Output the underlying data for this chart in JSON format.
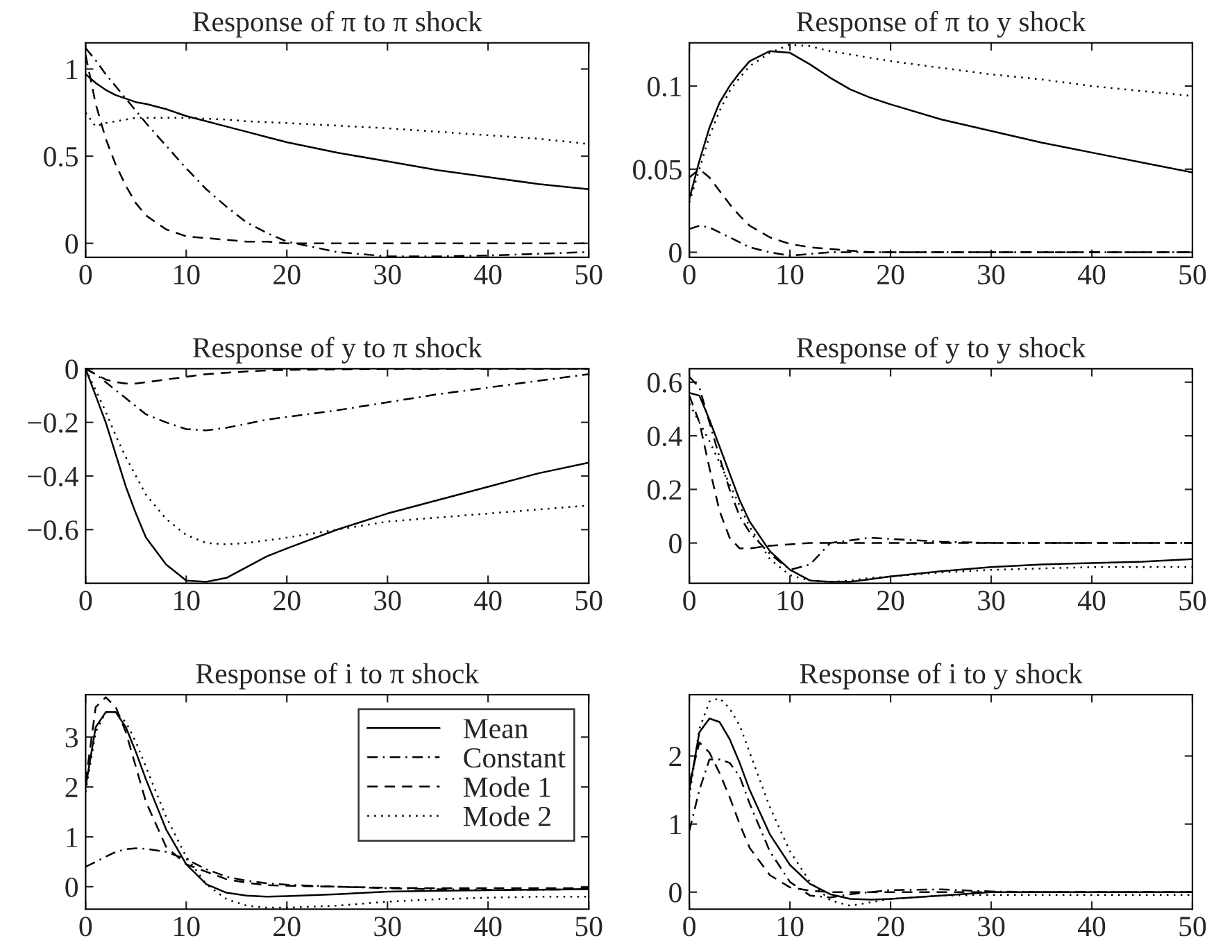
{
  "chart_data": [
    {
      "type": "line",
      "title": "Response of π to π shock",
      "x": [
        0,
        1,
        2,
        3,
        4,
        5,
        6,
        8,
        10,
        12,
        14,
        16,
        18,
        20,
        25,
        30,
        35,
        40,
        45,
        50
      ],
      "xlim": [
        0,
        50
      ],
      "xticks": [
        0,
        10,
        20,
        30,
        40,
        50
      ],
      "ylim": [
        -0.08,
        1.15
      ],
      "yticks": [
        0,
        0.5,
        1
      ],
      "legend": false,
      "series": [
        {
          "color": "#000000",
          "line_style": "solid",
          "values": [
            0.97,
            0.92,
            0.88,
            0.85,
            0.83,
            0.81,
            0.8,
            0.77,
            0.73,
            0.7,
            0.67,
            0.64,
            0.61,
            0.58,
            0.52,
            0.47,
            0.42,
            0.38,
            0.34,
            0.31
          ]
        },
        {
          "color": "#000000",
          "line_style": "dashdot",
          "values": [
            1.12,
            1.05,
            0.97,
            0.9,
            0.83,
            0.76,
            0.69,
            0.56,
            0.43,
            0.31,
            0.21,
            0.12,
            0.06,
            0.01,
            -0.05,
            -0.075,
            -0.075,
            -0.07,
            -0.06,
            -0.05
          ]
        },
        {
          "color": "#000000",
          "line_style": "dashed",
          "values": [
            1.08,
            0.8,
            0.6,
            0.45,
            0.33,
            0.23,
            0.16,
            0.08,
            0.04,
            0.03,
            0.02,
            0.01,
            0.01,
            0.0,
            0,
            0,
            0,
            0,
            0,
            0
          ]
        },
        {
          "color": "#000000",
          "line_style": "dotted",
          "values": [
            0.75,
            0.67,
            0.69,
            0.7,
            0.71,
            0.72,
            0.72,
            0.72,
            0.72,
            0.715,
            0.71,
            0.7,
            0.695,
            0.69,
            0.675,
            0.66,
            0.64,
            0.62,
            0.6,
            0.57
          ]
        }
      ]
    },
    {
      "type": "line",
      "title": "Response of π to y shock",
      "x": [
        0,
        1,
        2,
        3,
        4,
        5,
        6,
        8,
        10,
        12,
        14,
        16,
        18,
        20,
        25,
        30,
        35,
        40,
        45,
        50
      ],
      "xlim": [
        0,
        50
      ],
      "xticks": [
        0,
        10,
        20,
        30,
        40,
        50
      ],
      "ylim": [
        -0.003,
        0.126
      ],
      "yticks": [
        0,
        0.05,
        0.1
      ],
      "legend": false,
      "series": [
        {
          "color": "#000000",
          "line_style": "solid",
          "values": [
            0.032,
            0.055,
            0.075,
            0.09,
            0.1,
            0.108,
            0.115,
            0.121,
            0.12,
            0.113,
            0.105,
            0.098,
            0.093,
            0.089,
            0.08,
            0.073,
            0.066,
            0.06,
            0.054,
            0.048
          ]
        },
        {
          "color": "#000000",
          "line_style": "dashdot",
          "values": [
            0.014,
            0.016,
            0.015,
            0.012,
            0.009,
            0.006,
            0.003,
            0.0,
            -0.002,
            -0.001,
            0.0,
            0,
            0,
            0,
            0,
            0,
            0,
            0,
            0,
            0
          ]
        },
        {
          "color": "#000000",
          "line_style": "dashed",
          "values": [
            0.045,
            0.05,
            0.045,
            0.037,
            0.029,
            0.022,
            0.016,
            0.009,
            0.005,
            0.003,
            0.002,
            0.001,
            0.0,
            0,
            0,
            0,
            0,
            0,
            0,
            0
          ]
        },
        {
          "color": "#000000",
          "line_style": "dotted",
          "values": [
            0.03,
            0.05,
            0.07,
            0.085,
            0.097,
            0.105,
            0.112,
            0.12,
            0.125,
            0.124,
            0.121,
            0.119,
            0.117,
            0.115,
            0.111,
            0.107,
            0.104,
            0.1,
            0.097,
            0.094
          ]
        }
      ]
    },
    {
      "type": "line",
      "title": "Response of y to π shock",
      "x": [
        0,
        1,
        2,
        3,
        4,
        5,
        6,
        8,
        10,
        12,
        14,
        16,
        18,
        20,
        25,
        30,
        35,
        40,
        45,
        50
      ],
      "xlim": [
        0,
        50
      ],
      "xticks": [
        0,
        10,
        20,
        30,
        40,
        50
      ],
      "ylim": [
        -0.8,
        0
      ],
      "yticks": [
        {
          "value": -0.6,
          "label": "−0.6"
        },
        {
          "value": -0.4,
          "label": "−0.4"
        },
        {
          "value": -0.2,
          "label": "−0.2"
        },
        0
      ],
      "legend": false,
      "series": [
        {
          "color": "#000000",
          "line_style": "solid",
          "values": [
            0,
            -0.1,
            -0.2,
            -0.32,
            -0.44,
            -0.54,
            -0.63,
            -0.73,
            -0.79,
            -0.795,
            -0.78,
            -0.74,
            -0.7,
            -0.67,
            -0.6,
            -0.54,
            -0.49,
            -0.44,
            -0.39,
            -0.35
          ]
        },
        {
          "color": "#000000",
          "line_style": "dashdot",
          "values": [
            0,
            -0.02,
            -0.05,
            -0.08,
            -0.11,
            -0.14,
            -0.17,
            -0.2,
            -0.225,
            -0.23,
            -0.22,
            -0.205,
            -0.19,
            -0.18,
            -0.155,
            -0.125,
            -0.095,
            -0.07,
            -0.045,
            -0.02
          ]
        },
        {
          "color": "#000000",
          "line_style": "dashed",
          "values": [
            0,
            -0.02,
            -0.04,
            -0.05,
            -0.055,
            -0.055,
            -0.05,
            -0.04,
            -0.03,
            -0.02,
            -0.015,
            -0.01,
            -0.006,
            -0.004,
            -0.002,
            0,
            0,
            0,
            0,
            0
          ]
        },
        {
          "color": "#000000",
          "line_style": "dotted",
          "values": [
            0,
            -0.08,
            -0.16,
            -0.25,
            -0.33,
            -0.4,
            -0.47,
            -0.56,
            -0.62,
            -0.65,
            -0.655,
            -0.65,
            -0.64,
            -0.63,
            -0.6,
            -0.57,
            -0.555,
            -0.54,
            -0.525,
            -0.51
          ]
        }
      ]
    },
    {
      "type": "line",
      "title": "Response of y to y shock",
      "x": [
        0,
        1,
        2,
        3,
        4,
        5,
        6,
        8,
        10,
        12,
        14,
        16,
        18,
        20,
        25,
        30,
        35,
        40,
        45,
        50
      ],
      "xlim": [
        0,
        50
      ],
      "xticks": [
        0,
        10,
        20,
        30,
        40,
        50
      ],
      "ylim": [
        -0.15,
        0.65
      ],
      "yticks": [
        0,
        0.2,
        0.4,
        0.6
      ],
      "legend": false,
      "series": [
        {
          "color": "#000000",
          "line_style": "solid",
          "values": [
            0.56,
            0.55,
            0.46,
            0.36,
            0.26,
            0.16,
            0.08,
            -0.03,
            -0.1,
            -0.14,
            -0.145,
            -0.145,
            -0.135,
            -0.125,
            -0.105,
            -0.09,
            -0.08,
            -0.075,
            -0.07,
            -0.06
          ]
        },
        {
          "color": "#000000",
          "line_style": "dashdot",
          "values": [
            0.62,
            0.58,
            0.45,
            0.32,
            0.2,
            0.1,
            0.04,
            -0.04,
            -0.1,
            -0.08,
            0.0,
            0.01,
            0.02,
            0.015,
            0.005,
            0,
            0,
            0,
            0,
            0
          ]
        },
        {
          "color": "#000000",
          "line_style": "dashed",
          "values": [
            0.55,
            0.45,
            0.28,
            0.12,
            0.02,
            -0.02,
            -0.02,
            -0.01,
            -0.005,
            0,
            0,
            0,
            0,
            0,
            0,
            0,
            0,
            0,
            0,
            0
          ]
        },
        {
          "color": "#000000",
          "line_style": "dotted",
          "values": [
            0.52,
            0.45,
            0.38,
            0.3,
            0.22,
            0.14,
            0.06,
            -0.06,
            -0.12,
            -0.14,
            -0.145,
            -0.14,
            -0.13,
            -0.125,
            -0.11,
            -0.1,
            -0.095,
            -0.09,
            -0.09,
            -0.09
          ]
        }
      ]
    },
    {
      "type": "line",
      "title": "Response of i to π shock",
      "x": [
        0,
        1,
        2,
        3,
        4,
        5,
        6,
        8,
        10,
        12,
        14,
        16,
        18,
        20,
        25,
        30,
        35,
        40,
        45,
        50
      ],
      "xlim": [
        0,
        50
      ],
      "xticks": [
        0,
        10,
        20,
        30,
        40,
        50
      ],
      "ylim": [
        -0.45,
        3.85
      ],
      "yticks": [
        0,
        1,
        2,
        3
      ],
      "legend": "top right",
      "series": [
        {
          "name": "Mean",
          "color": "#000000",
          "line_style": "solid",
          "values": [
            2.0,
            3.2,
            3.5,
            3.5,
            3.2,
            2.7,
            2.15,
            1.15,
            0.45,
            0.05,
            -0.12,
            -0.18,
            -0.2,
            -0.19,
            -0.15,
            -0.1,
            -0.08,
            -0.07,
            -0.06,
            -0.05
          ]
        },
        {
          "name": "Constant",
          "color": "#000000",
          "line_style": "dashdot",
          "values": [
            0.4,
            0.5,
            0.6,
            0.7,
            0.75,
            0.77,
            0.76,
            0.7,
            0.55,
            0.35,
            0.2,
            0.12,
            0.07,
            0.04,
            0.0,
            -0.03,
            -0.05,
            -0.06,
            -0.06,
            -0.05
          ]
        },
        {
          "name": "Mode 1",
          "color": "#000000",
          "line_style": "dashed",
          "values": [
            2.1,
            3.6,
            3.8,
            3.6,
            3.1,
            2.4,
            1.7,
            0.8,
            0.45,
            0.3,
            0.15,
            0.08,
            0.03,
            0.02,
            0.0,
            -0.02,
            -0.03,
            -0.03,
            -0.03,
            -0.03
          ]
        },
        {
          "name": "Mode 2",
          "color": "#000000",
          "line_style": "dotted",
          "values": [
            1.9,
            3.1,
            3.5,
            3.5,
            3.3,
            2.9,
            2.4,
            1.4,
            0.6,
            0.05,
            -0.25,
            -0.38,
            -0.42,
            -0.42,
            -0.38,
            -0.3,
            -0.25,
            -0.22,
            -0.2,
            -0.2
          ]
        }
      ]
    },
    {
      "type": "line",
      "title": "Response of i to y shock",
      "x": [
        0,
        1,
        2,
        3,
        4,
        5,
        6,
        8,
        10,
        12,
        14,
        16,
        18,
        20,
        25,
        30,
        35,
        40,
        45,
        50
      ],
      "xlim": [
        0,
        50
      ],
      "xticks": [
        0,
        10,
        20,
        30,
        40,
        50
      ],
      "ylim": [
        -0.25,
        2.9
      ],
      "yticks": [
        0,
        1,
        2
      ],
      "legend": false,
      "series": [
        {
          "color": "#000000",
          "line_style": "solid",
          "values": [
            1.5,
            2.35,
            2.55,
            2.5,
            2.25,
            1.9,
            1.5,
            0.85,
            0.4,
            0.12,
            -0.03,
            -0.1,
            -0.11,
            -0.1,
            -0.05,
            0,
            0,
            0,
            0,
            0
          ]
        },
        {
          "color": "#000000",
          "line_style": "dashdot",
          "values": [
            0.9,
            1.5,
            1.95,
            1.95,
            1.9,
            1.7,
            1.3,
            0.6,
            0.15,
            -0.05,
            -0.08,
            -0.03,
            0.0,
            0.03,
            0.04,
            0.01,
            0,
            0,
            0,
            0
          ]
        },
        {
          "color": "#000000",
          "line_style": "dashed",
          "values": [
            1.6,
            2.2,
            2.05,
            1.75,
            1.4,
            1.0,
            0.65,
            0.25,
            0.07,
            0.02,
            0.0,
            0,
            0,
            0,
            0,
            0,
            0,
            0,
            0,
            0
          ]
        },
        {
          "color": "#000000",
          "line_style": "dotted",
          "values": [
            1.4,
            2.4,
            2.8,
            2.85,
            2.7,
            2.45,
            2.05,
            1.25,
            0.6,
            0.15,
            -0.12,
            -0.2,
            -0.15,
            -0.1,
            -0.05,
            -0.04,
            -0.04,
            -0.04,
            -0.04,
            -0.04
          ]
        }
      ]
    }
  ]
}
